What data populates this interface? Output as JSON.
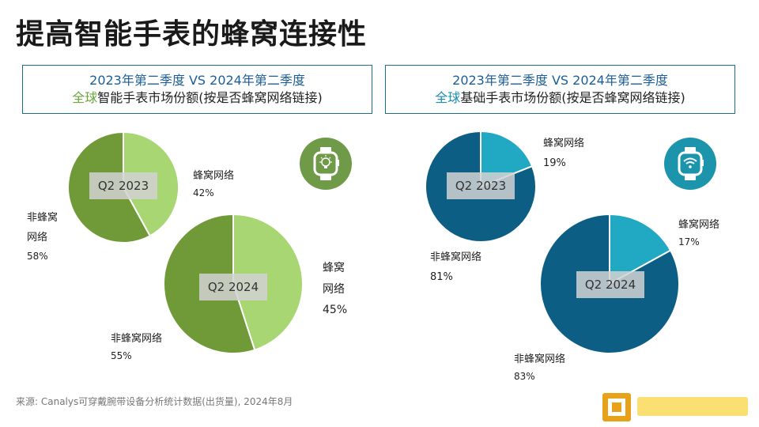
{
  "title": "提高智能手表的蜂窝连接性",
  "left_box": {
    "line1": "2023年第二季度 VS 2024年第二季度",
    "line2_highlight": "全球",
    "line2_rest": "智能手表市场份额(按是否蜂窝网络链接)"
  },
  "right_box": {
    "line1": "2023年第二季度 VS 2024年第二季度",
    "line2_highlight": "全球",
    "line2_rest": "基础手表市场份额(按是否蜂窝网络链接)"
  },
  "labels": {
    "sw23_cell": "蜂窝网络",
    "sw23_cell_pct": "42%",
    "sw23_non_1": "非蜂窝",
    "sw23_non_2": "网络",
    "sw23_non_pct": "58%",
    "sw24_cell_1": "蜂窝",
    "sw24_cell_2": "网络",
    "sw24_cell_pct": "45%",
    "sw24_non": "非蜂窝网络",
    "sw24_non_pct": "55%",
    "bw23_cell": "蜂窝网络",
    "bw23_cell_pct": "19%",
    "bw23_non": "非蜂窝网络",
    "bw23_non_pct": "81%",
    "bw24_cell": "蜂窝网络",
    "bw24_cell_pct": "17%",
    "bw24_non": "非蜂窝网络",
    "bw24_non_pct": "83%"
  },
  "q2_2023": "Q2 2023",
  "q2_2024": "Q2 2024",
  "source": "来源: Canalys可穿戴腕带设备分析统计数据(出货量), 2024年8月",
  "icons": {
    "smartwatch": "smartwatch-bulb-icon",
    "basicwatch": "watch-wifi-icon"
  },
  "colors": {
    "green_light": "#a8d672",
    "green_dark": "#6f9a37",
    "blue_light": "#21a8c2",
    "blue_dark": "#0d5e84",
    "icon_green": "#6f9a48",
    "icon_blue": "#1b94ac"
  },
  "chart_data": [
    {
      "type": "pie",
      "title": "Q2 2023",
      "labels": [
        "蜂窝网络",
        "非蜂窝网络"
      ],
      "values": [
        42,
        58
      ]
    },
    {
      "type": "pie",
      "title": "Q2 2024",
      "labels": [
        "蜂窝网络",
        "非蜂窝网络"
      ],
      "values": [
        45,
        55
      ]
    },
    {
      "type": "pie",
      "title": "Q2 2023",
      "labels": [
        "蜂窝网络",
        "非蜂窝网络"
      ],
      "values": [
        19,
        81
      ]
    },
    {
      "type": "pie",
      "title": "Q2 2024",
      "labels": [
        "蜂窝网络",
        "非蜂窝网络"
      ],
      "values": [
        17,
        83
      ]
    }
  ]
}
